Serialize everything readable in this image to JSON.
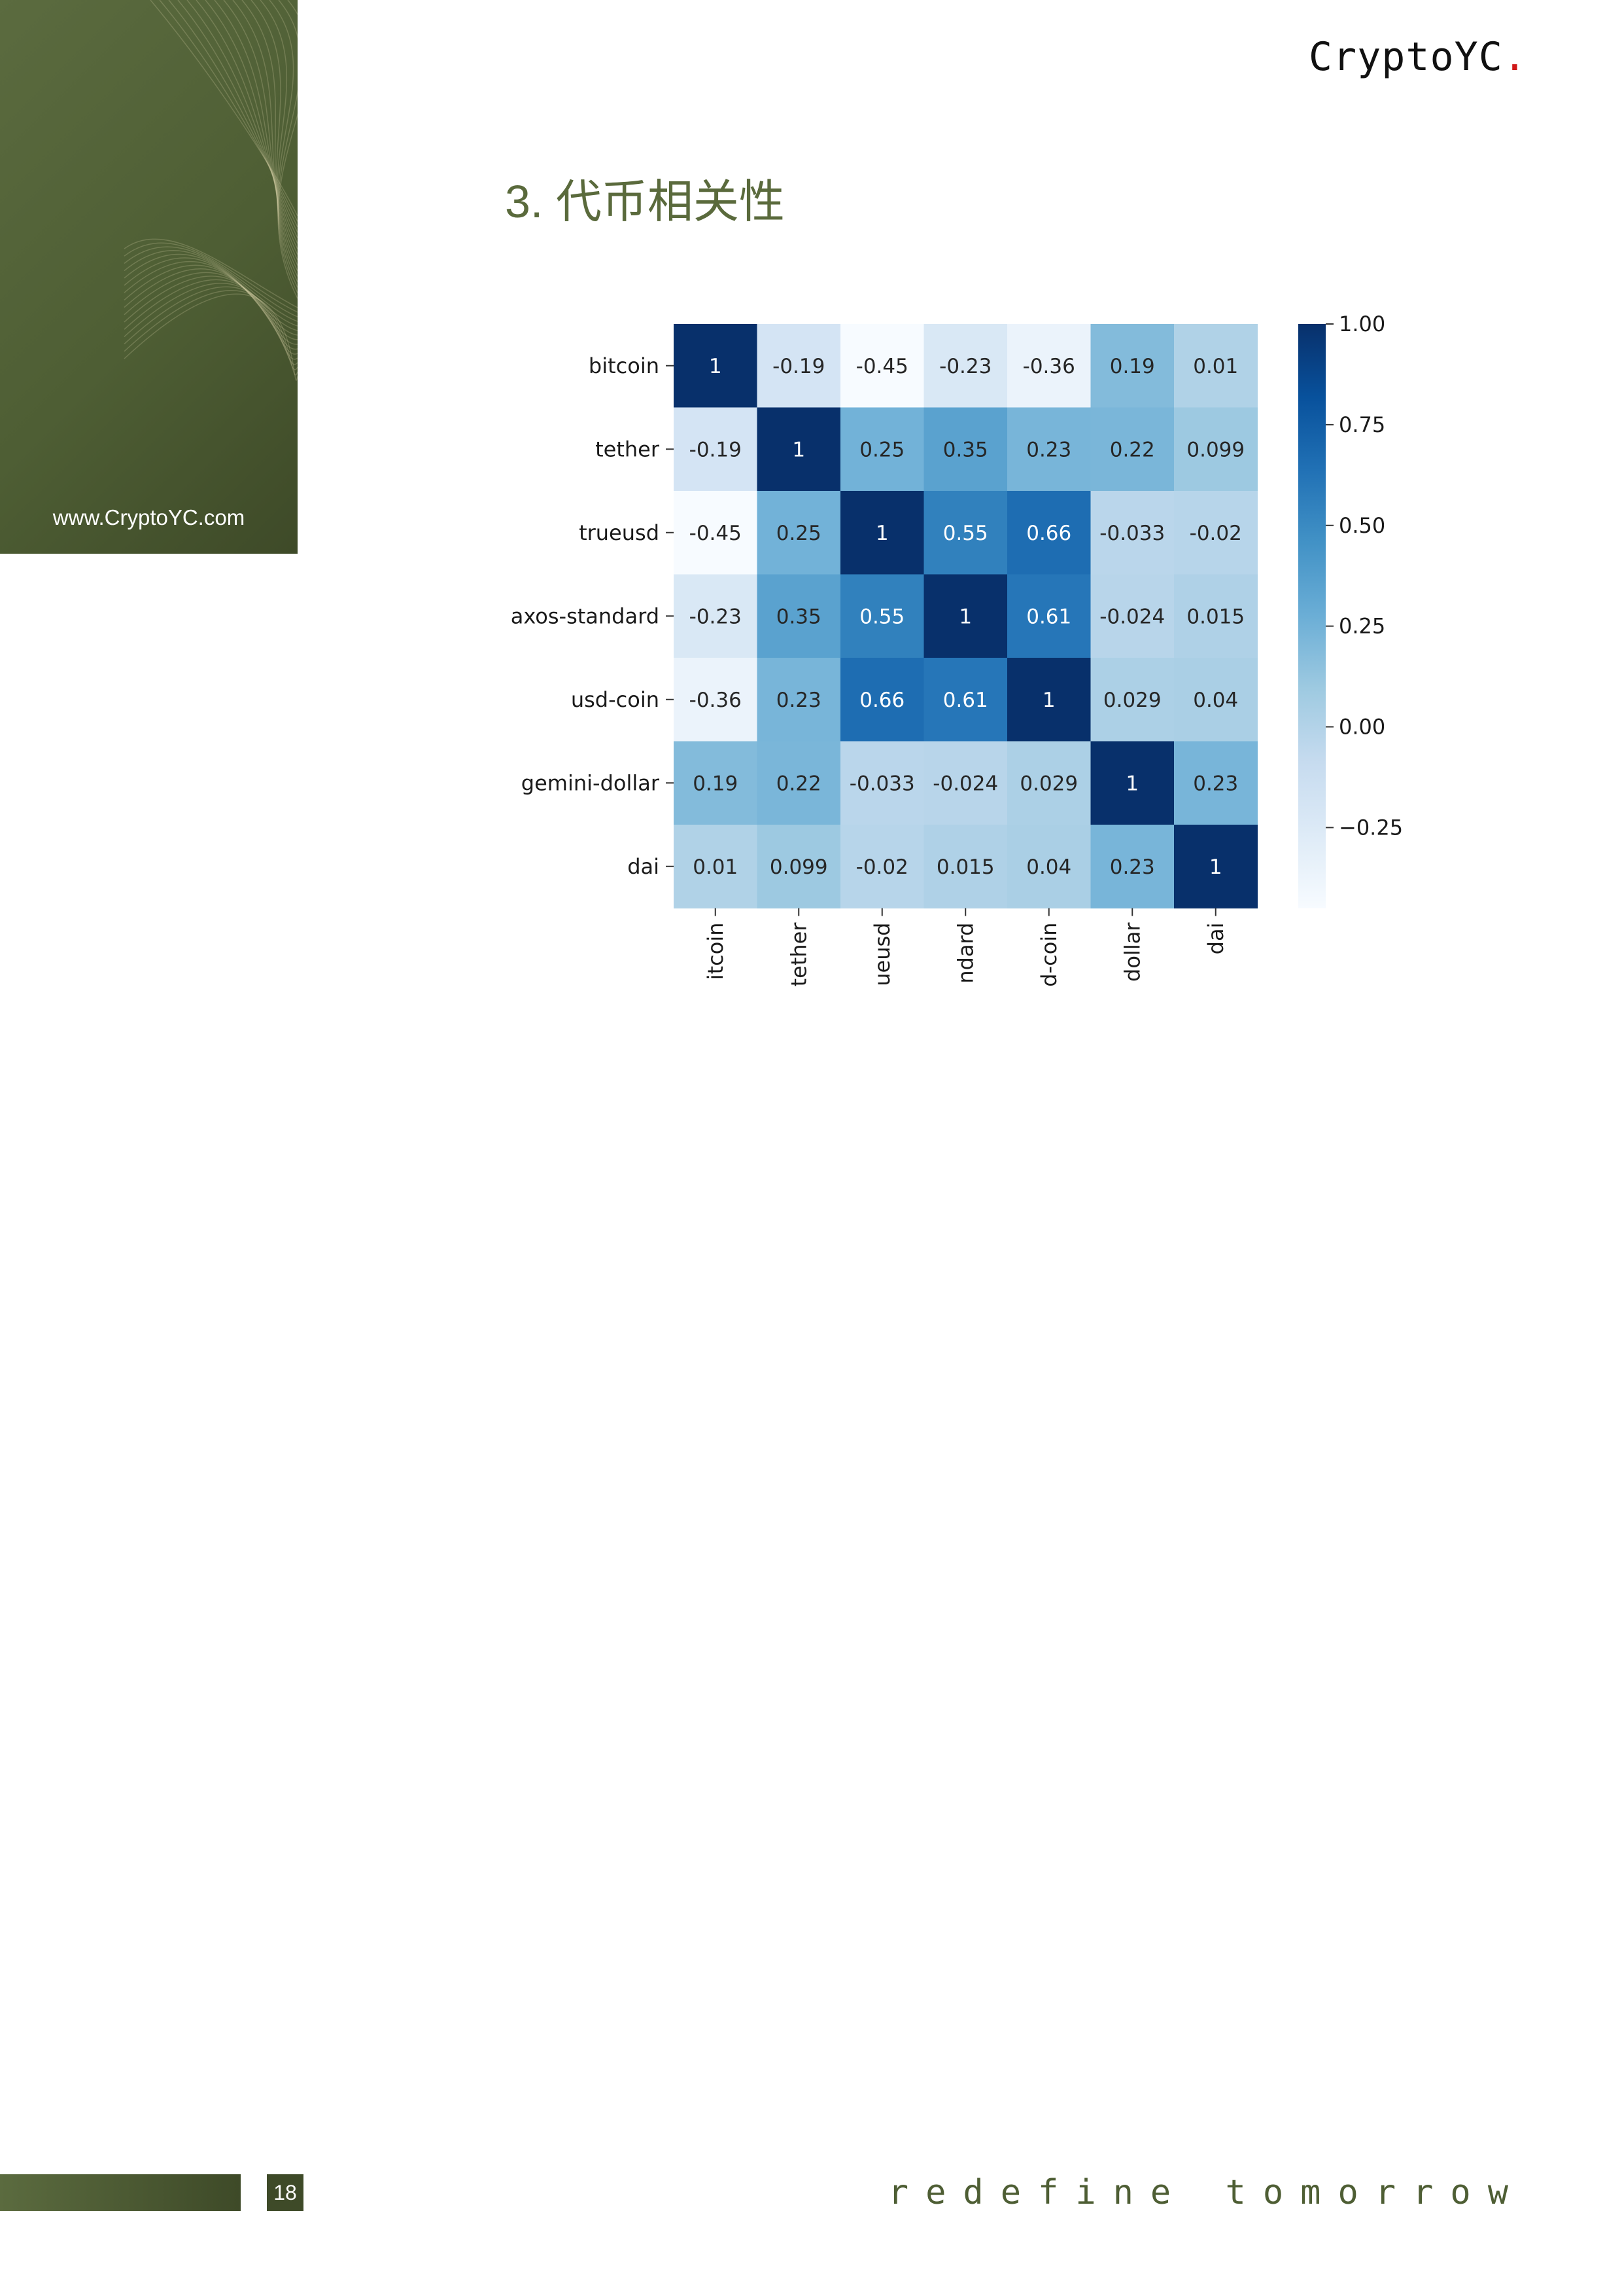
{
  "brand": {
    "name": "CryptoYC",
    "dot": "."
  },
  "side_panel": {
    "url": "www.CryptoYC.com"
  },
  "section": {
    "title": "3. 代币相关性"
  },
  "chart_data": {
    "type": "heatmap",
    "row_labels": [
      "bitcoin",
      "tether",
      "trueusd",
      "axos-standard",
      "usd-coin",
      "gemini-dollar",
      "dai"
    ],
    "col_labels": [
      "itcoin",
      "tether",
      "ueusd",
      "ndard",
      "d-coin",
      "dollar",
      "dai"
    ],
    "values": [
      [
        1,
        -0.19,
        -0.45,
        -0.23,
        -0.36,
        0.19,
        0.01
      ],
      [
        -0.19,
        1,
        0.25,
        0.35,
        0.23,
        0.22,
        0.099
      ],
      [
        -0.45,
        0.25,
        1,
        0.55,
        0.66,
        -0.033,
        -0.02
      ],
      [
        -0.23,
        0.35,
        0.55,
        1,
        0.61,
        -0.024,
        0.015
      ],
      [
        -0.36,
        0.23,
        0.66,
        0.61,
        1,
        0.029,
        0.04
      ],
      [
        0.19,
        0.22,
        -0.033,
        -0.024,
        0.029,
        1,
        0.23
      ],
      [
        0.01,
        0.099,
        -0.02,
        0.015,
        0.04,
        0.23,
        1
      ]
    ],
    "cell_labels": [
      [
        "1",
        "-0.19",
        "-0.45",
        "-0.23",
        "-0.36",
        "0.19",
        "0.01"
      ],
      [
        "-0.19",
        "1",
        "0.25",
        "0.35",
        "0.23",
        "0.22",
        "0.099"
      ],
      [
        "-0.45",
        "0.25",
        "1",
        "0.55",
        "0.66",
        "-0.033",
        "-0.02"
      ],
      [
        "-0.23",
        "0.35",
        "0.55",
        "1",
        "0.61",
        "-0.024",
        "0.015"
      ],
      [
        "-0.36",
        "0.23",
        "0.66",
        "0.61",
        "1",
        "0.029",
        "0.04"
      ],
      [
        "0.19",
        "0.22",
        "-0.033",
        "-0.024",
        "0.029",
        "1",
        "0.23"
      ],
      [
        "0.01",
        "0.099",
        "-0.02",
        "0.015",
        "0.04",
        "0.23",
        "1"
      ]
    ],
    "colorbar": {
      "ticks": [
        1.0,
        0.75,
        0.5,
        0.25,
        0.0,
        -0.25
      ],
      "tick_labels": [
        "1.00",
        "0.75",
        "0.50",
        "0.25",
        "0.00",
        "−0.25"
      ],
      "range": [
        -0.45,
        1.0
      ],
      "colormap": "Blues",
      "color_low": "#f7fbff",
      "color_high": "#08306b"
    }
  },
  "footer": {
    "page_number": "18",
    "tagline": "redefine tomorrow"
  }
}
